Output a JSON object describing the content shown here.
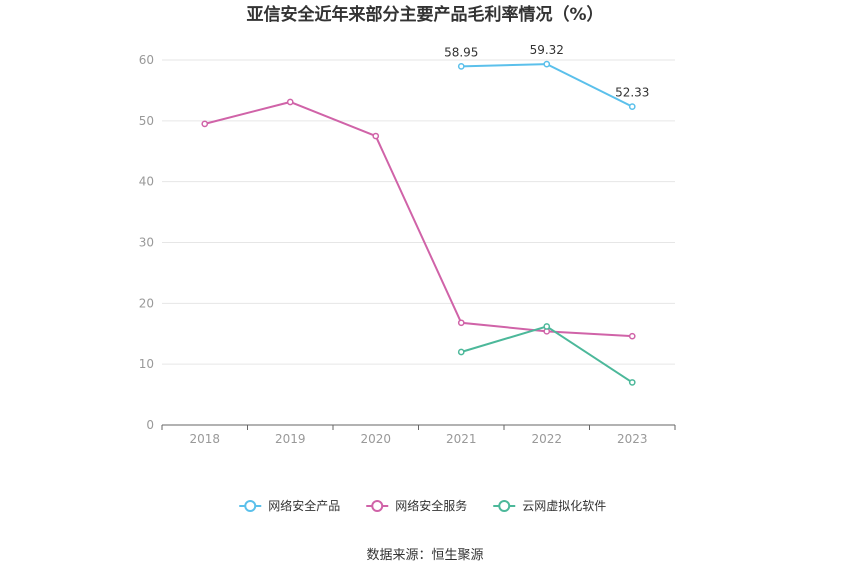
{
  "chart_data": {
    "type": "line",
    "title": "亚信安全近年来部分主要产品毛利率情况（%）",
    "categories": [
      "2018",
      "2019",
      "2020",
      "2021",
      "2022",
      "2023"
    ],
    "ylim": [
      0,
      60
    ],
    "yticks": [
      0,
      10,
      20,
      30,
      40,
      50,
      60
    ],
    "grid": true,
    "legend_position": "bottom",
    "series": [
      {
        "name": "网络安全产品",
        "color": "#5bc0eb",
        "values": [
          null,
          null,
          null,
          58.95,
          59.32,
          52.33
        ],
        "labels": [
          null,
          null,
          null,
          "58.95",
          "59.32",
          "52.33"
        ]
      },
      {
        "name": "网络安全服务",
        "color": "#d063a8",
        "values": [
          49.5,
          53.1,
          47.5,
          16.8,
          15.4,
          14.6
        ]
      },
      {
        "name": "云网虚拟化软件",
        "color": "#4cb89a",
        "values": [
          null,
          null,
          null,
          12.0,
          16.2,
          7.0
        ]
      }
    ]
  },
  "footer": {
    "source": "数据来源：恒生聚源"
  }
}
